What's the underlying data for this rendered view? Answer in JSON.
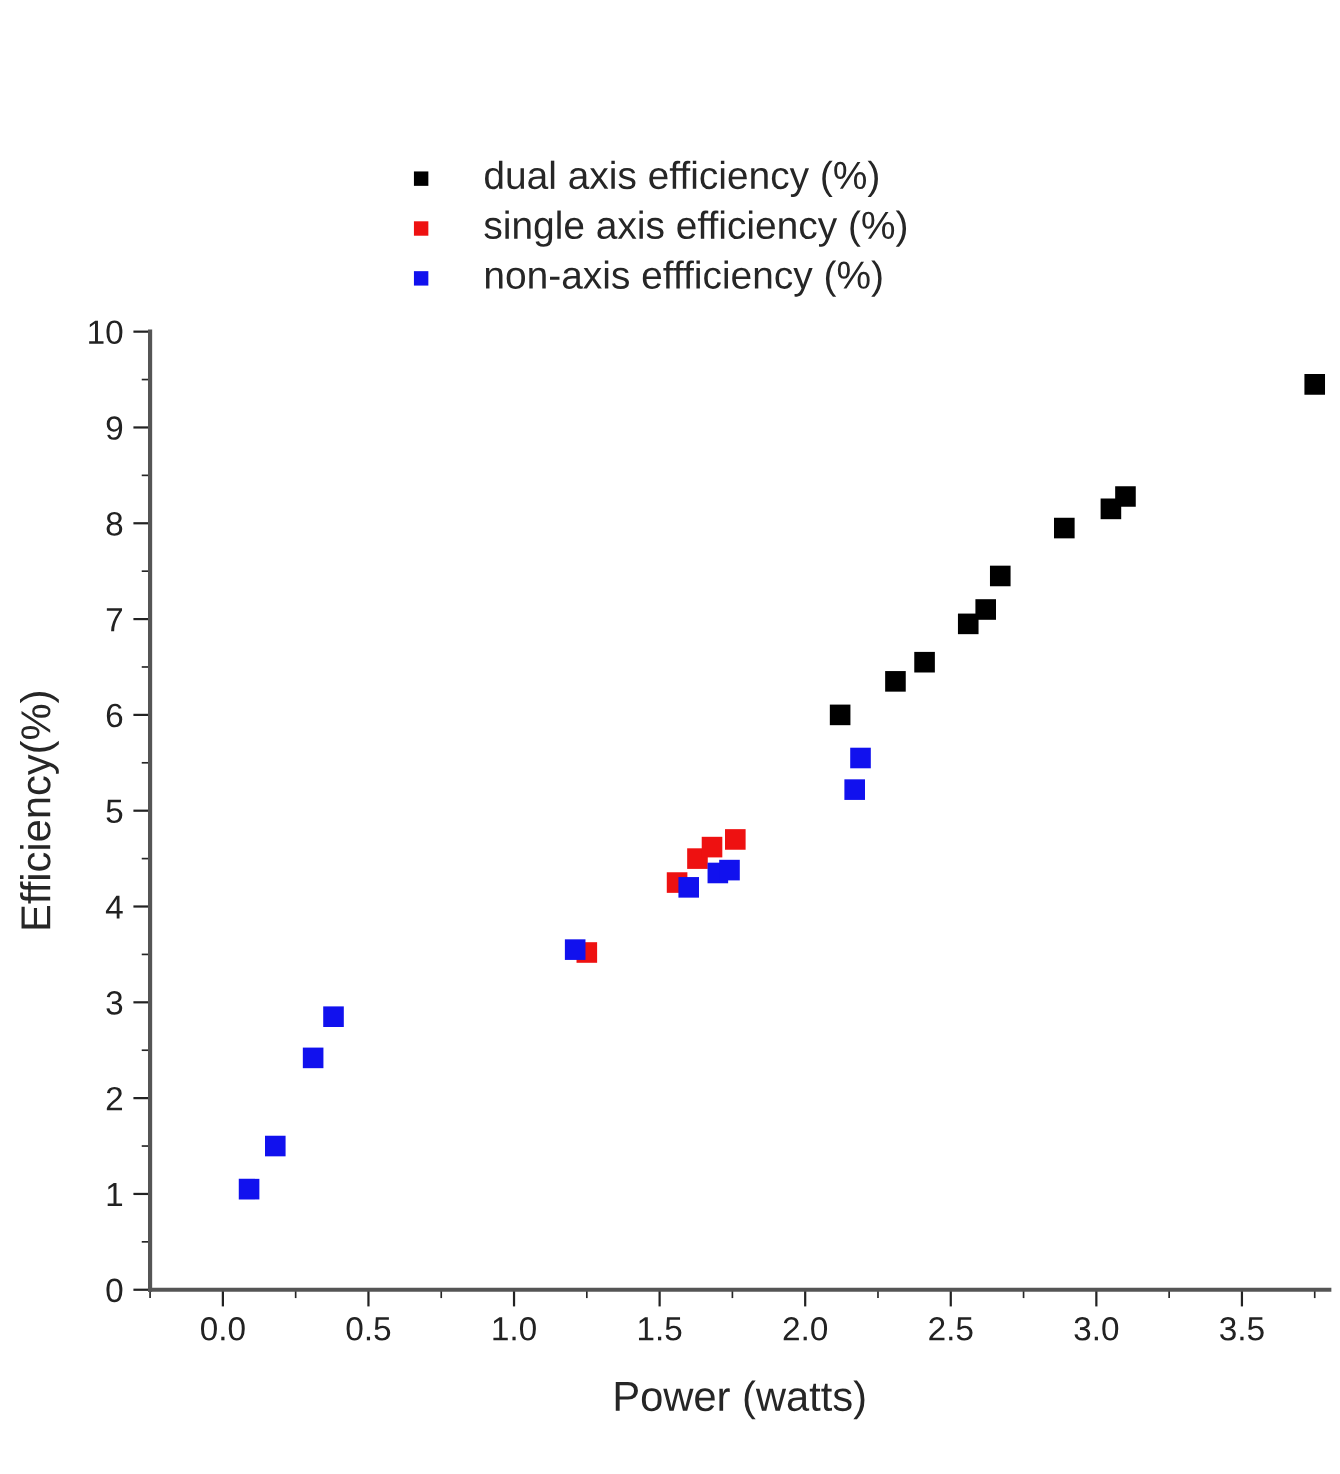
{
  "chart_data": {
    "type": "scatter",
    "xlabel": "Power (watts)",
    "ylabel": "Efficiency(%)",
    "xlim": [
      -0.25,
      3.8
    ],
    "xticks": [
      {
        "value": 0,
        "label": "0.0"
      },
      0.5,
      {
        "value": 1,
        "label": "1.0"
      },
      1.5,
      {
        "value": 2,
        "label": "2.0"
      },
      2.5,
      {
        "value": 3,
        "label": "3.0"
      },
      3.5
    ],
    "ylim": [
      0,
      10
    ],
    "yticks": [
      0,
      1,
      2,
      3,
      4,
      5,
      6,
      7,
      8,
      9,
      10
    ],
    "marker": "square",
    "legend": "top",
    "grid": false,
    "series": [
      {
        "name": "dual axis efficiency (%)",
        "color": "#000000",
        "x": [
          2.12,
          2.31,
          2.41,
          2.56,
          2.62,
          2.67,
          2.89,
          3.05,
          3.1,
          3.75
        ],
        "values": [
          6.0,
          6.35,
          6.55,
          6.95,
          7.1,
          7.45,
          7.95,
          8.15,
          8.28,
          9.45
        ]
      },
      {
        "name": "single axis efficiency (%)",
        "color": "#ee1111",
        "x": [
          1.25,
          1.56,
          1.63,
          1.68,
          1.76
        ],
        "values": [
          3.52,
          4.25,
          4.5,
          4.62,
          4.7
        ]
      },
      {
        "name": "non-axis effficiency (%)",
        "color": "#1111ee",
        "x": [
          0.09,
          0.18,
          0.31,
          0.38,
          1.21,
          1.6,
          1.7,
          1.74,
          2.17,
          2.19
        ],
        "values": [
          1.05,
          1.5,
          2.42,
          2.85,
          3.55,
          4.2,
          4.35,
          4.38,
          5.22,
          5.55
        ]
      }
    ]
  }
}
